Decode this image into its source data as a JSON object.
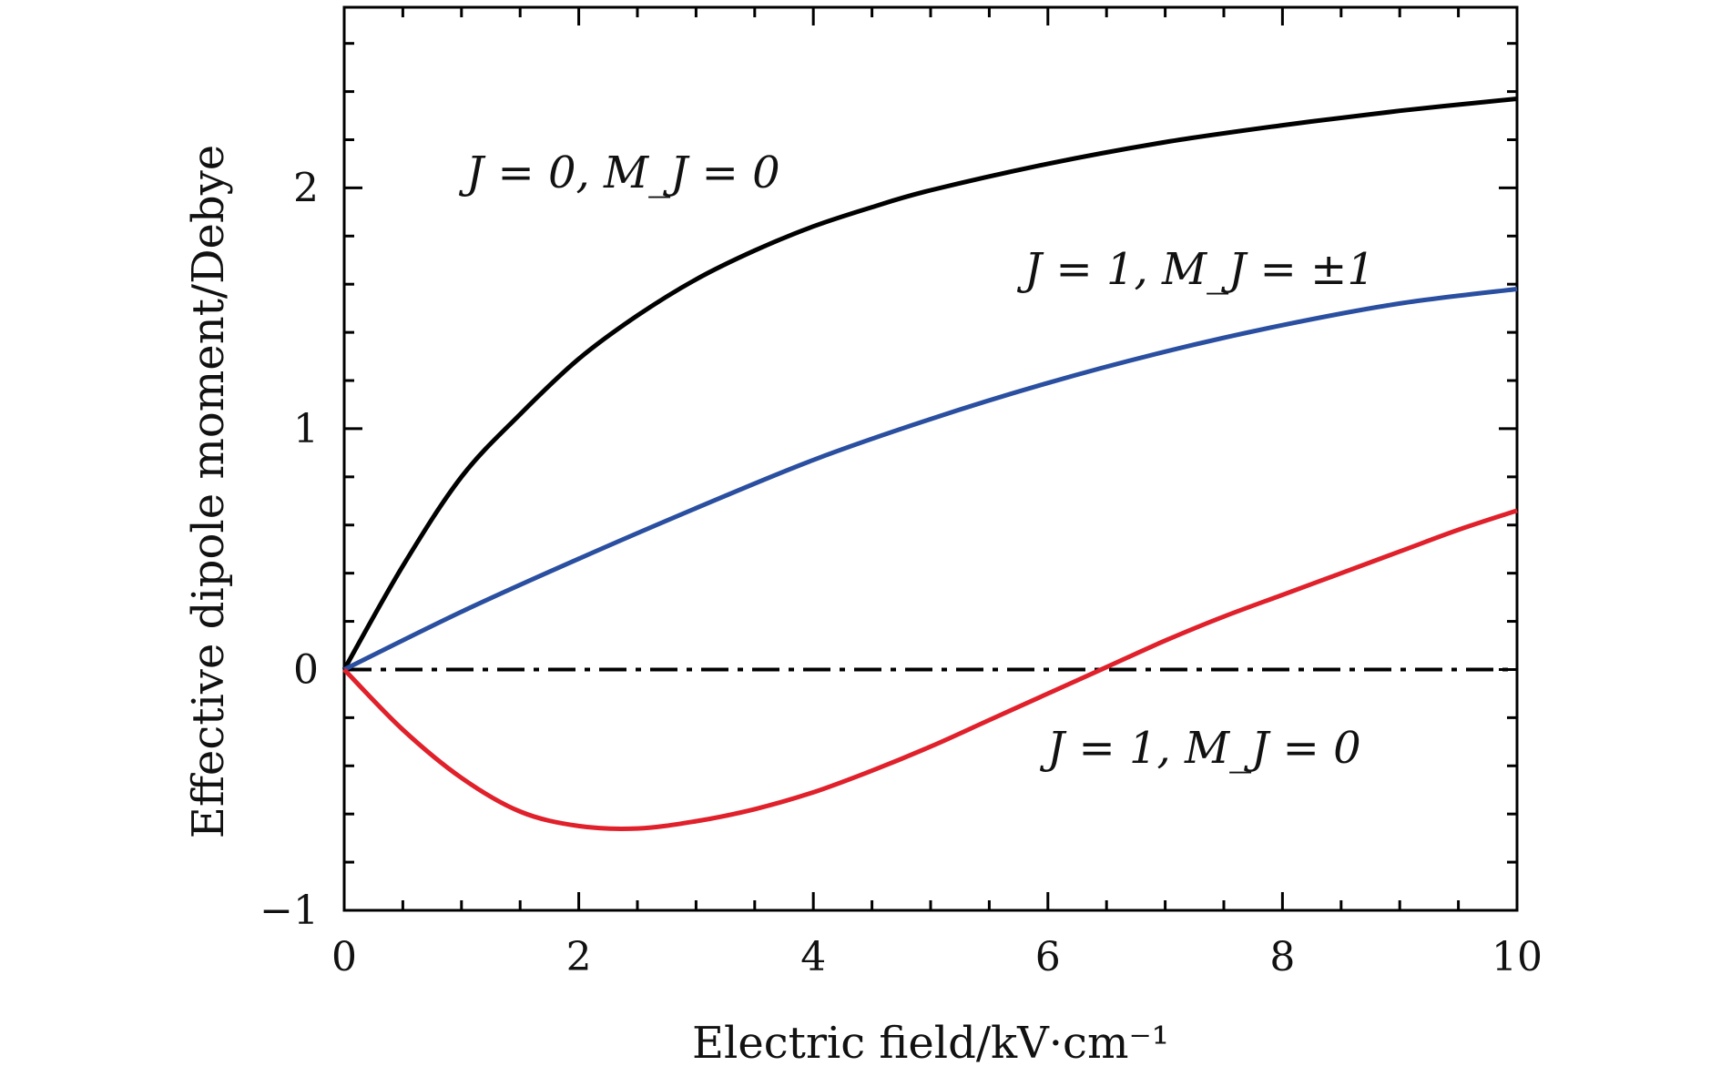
{
  "chart_data": {
    "type": "line",
    "title": "",
    "xlabel": "Electric field/kV·cm⁻¹",
    "ylabel": "Effective dipole moment/Debye",
    "xlim": [
      0,
      10
    ],
    "ylim": [
      -1,
      2.75
    ],
    "xticks": [
      0,
      2,
      4,
      6,
      8,
      10
    ],
    "yticks": [
      -1,
      0,
      1,
      2
    ],
    "xtick_labels": [
      "0",
      "2",
      "4",
      "6",
      "8",
      "10"
    ],
    "ytick_labels": [
      "−1",
      "0",
      "1",
      "2"
    ],
    "grid": false,
    "legend": "none",
    "zero_line": {
      "y": 0,
      "style": "dash-dot",
      "color": "#000000"
    },
    "series": [
      {
        "label": "J = 0, M_J = 0",
        "color": "#000000",
        "x": [
          0,
          0.5,
          1,
          1.5,
          2,
          2.5,
          3,
          3.5,
          4,
          4.5,
          5,
          6,
          7,
          8,
          9,
          10
        ],
        "y": [
          0,
          0.43,
          0.8,
          1.06,
          1.29,
          1.47,
          1.62,
          1.74,
          1.84,
          1.92,
          1.99,
          2.1,
          2.19,
          2.26,
          2.32,
          2.37
        ]
      },
      {
        "label": "J = 1, M_J = ±1",
        "color": "#2a4fa0",
        "x": [
          0,
          1,
          2,
          3,
          4,
          5,
          6,
          7,
          8,
          9,
          10
        ],
        "y": [
          0,
          0.24,
          0.46,
          0.67,
          0.87,
          1.04,
          1.19,
          1.32,
          1.43,
          1.52,
          1.58
        ]
      },
      {
        "label": "J = 1, M_J = 0",
        "color": "#e0202a",
        "x": [
          0,
          0.5,
          1,
          1.5,
          2,
          2.5,
          3,
          3.5,
          4,
          4.5,
          5,
          5.5,
          6,
          6.5,
          7,
          7.5,
          8,
          8.5,
          9,
          9.5,
          10
        ],
        "y": [
          0,
          -0.25,
          -0.45,
          -0.59,
          -0.65,
          -0.66,
          -0.63,
          -0.58,
          -0.51,
          -0.42,
          -0.32,
          -0.21,
          -0.1,
          0.01,
          0.12,
          0.22,
          0.31,
          0.4,
          0.49,
          0.58,
          0.66
        ]
      }
    ],
    "annotations": [
      {
        "text_plain": "J = 0,  M_J = 0"
      },
      {
        "text_plain": "J = 1,  M_J = ±1"
      },
      {
        "text_plain": "J = 1,  M_J = 0"
      }
    ]
  }
}
